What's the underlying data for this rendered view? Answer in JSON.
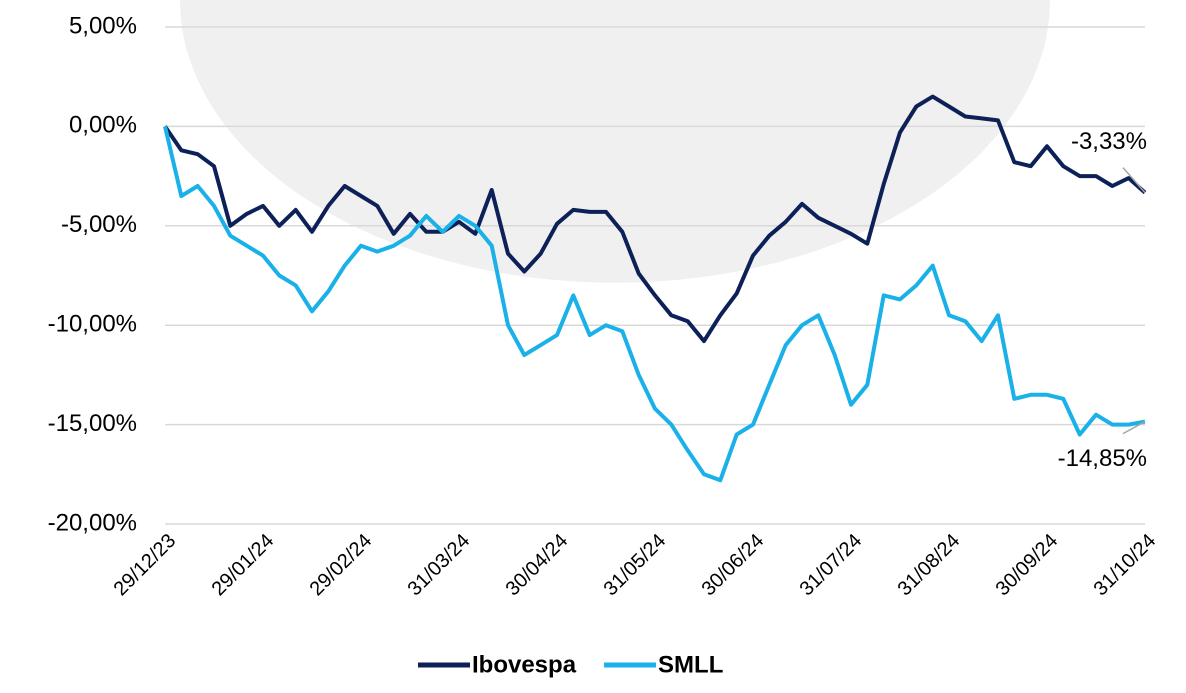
{
  "chart_data": {
    "type": "line",
    "categories": [
      "29/12/23",
      null,
      null,
      null,
      null,
      null,
      "29/01/24",
      null,
      null,
      null,
      null,
      null,
      "29/02/24",
      null,
      null,
      null,
      null,
      null,
      "31/03/24",
      null,
      null,
      null,
      null,
      null,
      "30/04/24",
      null,
      null,
      null,
      null,
      null,
      "31/05/24",
      null,
      null,
      null,
      null,
      null,
      "30/06/24",
      null,
      null,
      null,
      null,
      null,
      "31/07/24",
      null,
      null,
      null,
      null,
      null,
      "31/08/24",
      null,
      null,
      null,
      null,
      null,
      "30/09/24",
      null,
      null,
      null,
      null,
      null,
      "31/10/24"
    ],
    "series": [
      {
        "name": "Ibovespa",
        "color": "#0d2158",
        "values": [
          0,
          -1.2,
          -1.4,
          -2.0,
          -5.0,
          -4.4,
          -4.0,
          -5.0,
          -4.2,
          -5.3,
          -4.0,
          -3.0,
          -3.5,
          -4.0,
          -5.4,
          -4.4,
          -5.3,
          -5.3,
          -4.8,
          -5.4,
          -3.2,
          -6.4,
          -7.3,
          -6.4,
          -4.9,
          -4.2,
          -4.3,
          -4.3,
          -5.3,
          -7.4,
          -8.5,
          -9.5,
          -9.8,
          -10.8,
          -9.5,
          -8.4,
          -6.5,
          -5.5,
          -4.8,
          -3.9,
          -4.6,
          -5.0,
          -5.4,
          -5.9,
          -2.9,
          -0.3,
          1.0,
          1.5,
          1.0,
          0.5,
          0.4,
          0.3,
          -1.8,
          -2.0,
          -1.0,
          -2.0,
          -2.5,
          -2.5,
          -3.0,
          -2.6,
          -3.33
        ],
        "value_labels": [
          null,
          null,
          null,
          null,
          null,
          null,
          null,
          null,
          null,
          null,
          null,
          null,
          null,
          null,
          null,
          null,
          null,
          null,
          null,
          null,
          null,
          null,
          null,
          null,
          null,
          null,
          null,
          null,
          null,
          null,
          null,
          null,
          null,
          null,
          null,
          null,
          null,
          null,
          null,
          null,
          null,
          null,
          null,
          null,
          null,
          null,
          null,
          null,
          null,
          null,
          null,
          null,
          null,
          null,
          null,
          null,
          null,
          null,
          null,
          null,
          "-3,33%"
        ]
      },
      {
        "name": "SMLL",
        "color": "#1ab0e8",
        "values": [
          0,
          -3.5,
          -3.0,
          -4.0,
          -5.5,
          -6.0,
          -6.5,
          -7.5,
          -8.0,
          -9.3,
          -8.3,
          -7.0,
          -6.0,
          -6.3,
          -6.0,
          -5.5,
          -4.5,
          -5.3,
          -4.5,
          -5.0,
          -6.0,
          -10.0,
          -11.5,
          -11.0,
          -10.5,
          -8.5,
          -10.5,
          -10.0,
          -10.3,
          -12.5,
          -14.2,
          -15.0,
          -16.3,
          -17.5,
          -17.8,
          -15.5,
          -15.0,
          -13.0,
          -11.0,
          -10.0,
          -9.5,
          -11.5,
          -14.0,
          -13.0,
          -8.5,
          -8.7,
          -8.0,
          -7.0,
          -9.5,
          -9.8,
          -10.8,
          -9.5,
          -13.7,
          -13.5,
          -13.5,
          -13.7,
          -15.5,
          -14.5,
          -15.0,
          -15.0,
          -14.85
        ],
        "value_labels": [
          null,
          null,
          null,
          null,
          null,
          null,
          null,
          null,
          null,
          null,
          null,
          null,
          null,
          null,
          null,
          null,
          null,
          null,
          null,
          null,
          null,
          null,
          null,
          null,
          null,
          null,
          null,
          null,
          null,
          null,
          null,
          null,
          null,
          null,
          null,
          null,
          null,
          null,
          null,
          null,
          null,
          null,
          null,
          null,
          null,
          null,
          null,
          null,
          null,
          null,
          null,
          null,
          null,
          null,
          null,
          null,
          null,
          null,
          null,
          null,
          "-14,85%"
        ]
      }
    ],
    "ylim": [
      -20,
      5
    ],
    "yticks": [
      {
        "value": -20,
        "label": "-20,00%"
      },
      {
        "value": -15,
        "label": "-15,00%"
      },
      {
        "value": -10,
        "label": "-10,00%"
      },
      {
        "value": -5,
        "label": "-5,00%"
      },
      {
        "value": 0,
        "label": "0,00%"
      },
      {
        "value": 5,
        "label": "5,00%"
      }
    ],
    "grid": true,
    "legend": "bottom"
  }
}
